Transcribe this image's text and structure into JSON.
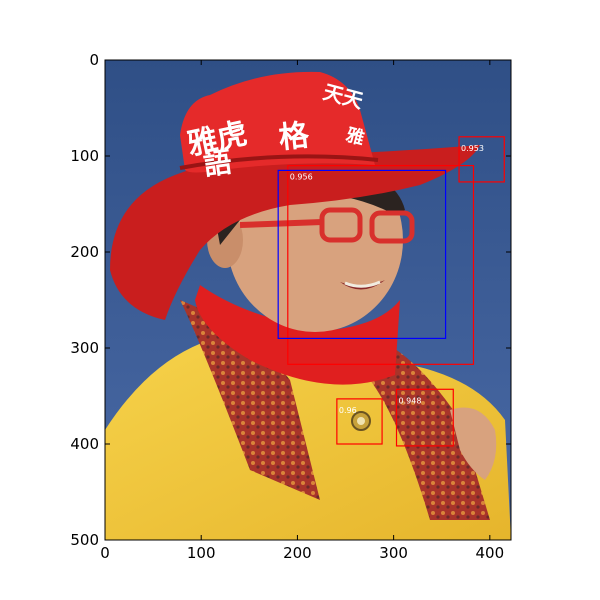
{
  "chart_data": {
    "type": "image-detections",
    "image": "photo of a smiling woman wearing a red cowboy hat with white Chinese characters, red-framed glasses, a red scarf, a patterned paisley shawl and a yellow coat, against a blue background",
    "hat_text": [
      "雅虎",
      "語",
      "格",
      "天天",
      "雅"
    ],
    "xlim": [
      0,
      422
    ],
    "ylim": [
      500,
      0
    ],
    "x_ticks": [
      0,
      100,
      200,
      300,
      400
    ],
    "y_ticks": [
      0,
      100,
      200,
      300,
      400,
      500
    ],
    "detections": [
      {
        "x1": 190,
        "y1": 110,
        "x2": 383,
        "y2": 317,
        "score": "0.956",
        "color": "#ff0000"
      },
      {
        "x1": 368,
        "y1": 80,
        "x2": 415,
        "y2": 127,
        "score": "0.953",
        "color": "#ff0000"
      },
      {
        "x1": 303,
        "y1": 343,
        "x2": 362,
        "y2": 402,
        "score": "0.948",
        "color": "#ff0000"
      },
      {
        "x1": 241,
        "y1": 353,
        "x2": 288,
        "y2": 400,
        "score": "0.96",
        "color": "#ff0000"
      },
      {
        "x1": 180,
        "y1": 115,
        "x2": 354,
        "y2": 290,
        "score": "",
        "color": "#0000ff"
      }
    ]
  }
}
